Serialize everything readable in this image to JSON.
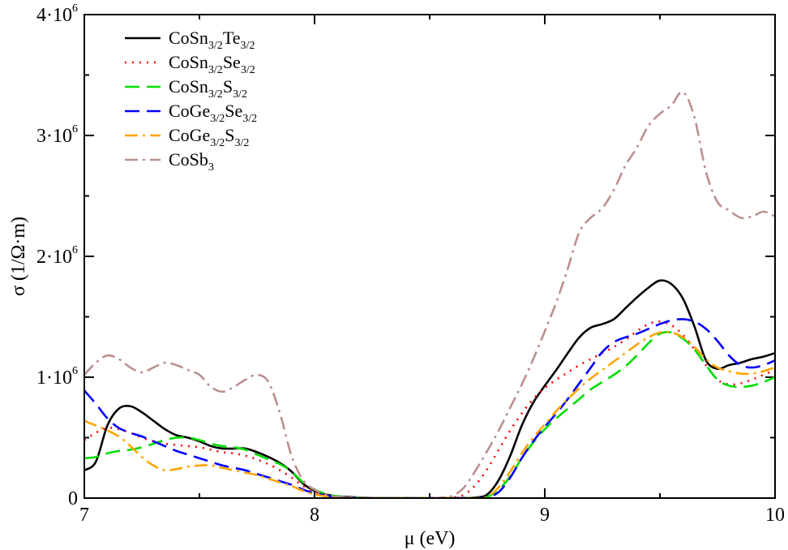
{
  "chart_data": {
    "type": "line",
    "title": "",
    "xlabel": "μ (eV)",
    "ylabel": "σ (1/Ω·m)",
    "xlim": [
      7,
      10
    ],
    "ylim": [
      0,
      4000000
    ],
    "grid": false,
    "legend_position": "top-left",
    "x_ticks": [
      {
        "value": 7,
        "label": "7"
      },
      {
        "value": 8,
        "label": "8"
      },
      {
        "value": 9,
        "label": "9"
      },
      {
        "value": 10,
        "label": "10"
      }
    ],
    "y_ticks": [
      {
        "value": 0,
        "base": "0",
        "exp": ""
      },
      {
        "value": 1000000,
        "base": "1·10",
        "exp": "6"
      },
      {
        "value": 2000000,
        "base": "2·10",
        "exp": "6"
      },
      {
        "value": 3000000,
        "base": "3·10",
        "exp": "6"
      },
      {
        "value": 4000000,
        "base": "4·10",
        "exp": "6"
      }
    ],
    "series": [
      {
        "name": "CoSn3/2Te3/2",
        "label_parts": [
          [
            "CoSn",
            ""
          ],
          [
            "3/2",
            "sub"
          ],
          [
            "Te",
            ""
          ],
          [
            "3/2",
            "sub"
          ]
        ],
        "color": "#000000",
        "dash": "",
        "width": 2.6,
        "x": [
          7.0,
          7.05,
          7.1,
          7.15,
          7.2,
          7.25,
          7.3,
          7.35,
          7.4,
          7.45,
          7.5,
          7.55,
          7.6,
          7.65,
          7.7,
          7.75,
          7.8,
          7.85,
          7.9,
          7.95,
          8.0,
          8.05,
          8.1,
          8.2,
          8.3,
          8.4,
          8.5,
          8.6,
          8.7,
          8.75,
          8.8,
          8.85,
          8.9,
          8.95,
          9.0,
          9.05,
          9.1,
          9.15,
          9.2,
          9.25,
          9.3,
          9.35,
          9.4,
          9.45,
          9.5,
          9.55,
          9.6,
          9.65,
          9.7,
          9.75,
          9.8,
          9.85,
          9.9,
          9.95,
          10.0
        ],
        "y": [
          230000,
          300000,
          600000,
          740000,
          760000,
          710000,
          640000,
          570000,
          520000,
          500000,
          470000,
          430000,
          410000,
          410000,
          410000,
          380000,
          340000,
          290000,
          220000,
          120000,
          60000,
          30000,
          15000,
          5000,
          0,
          0,
          0,
          0,
          5000,
          30000,
          150000,
          350000,
          600000,
          790000,
          930000,
          1060000,
          1200000,
          1330000,
          1410000,
          1440000,
          1480000,
          1570000,
          1660000,
          1740000,
          1800000,
          1770000,
          1650000,
          1420000,
          1140000,
          1070000,
          1100000,
          1120000,
          1150000,
          1170000,
          1200000
        ]
      },
      {
        "name": "CoSn3/2Se3/2",
        "label_parts": [
          [
            "CoSn",
            ""
          ],
          [
            "3/2",
            "sub"
          ],
          [
            "Se",
            ""
          ],
          [
            "3/2",
            "sub"
          ]
        ],
        "color": "#ff0000",
        "dash": "2,7",
        "width": 2.6,
        "x": [
          7.0,
          7.05,
          7.1,
          7.15,
          7.2,
          7.25,
          7.3,
          7.35,
          7.4,
          7.45,
          7.5,
          7.55,
          7.6,
          7.65,
          7.7,
          7.75,
          7.8,
          7.85,
          7.9,
          7.95,
          8.0,
          8.05,
          8.1,
          8.2,
          8.3,
          8.4,
          8.5,
          8.6,
          8.65,
          8.7,
          8.75,
          8.8,
          8.85,
          8.9,
          8.95,
          9.0,
          9.05,
          9.1,
          9.15,
          9.2,
          9.25,
          9.3,
          9.35,
          9.4,
          9.45,
          9.5,
          9.55,
          9.6,
          9.65,
          9.7,
          9.75,
          9.8,
          9.85,
          9.9,
          9.95,
          10.0
        ],
        "y": [
          480000,
          540000,
          580000,
          570000,
          540000,
          500000,
          470000,
          450000,
          440000,
          430000,
          420000,
          400000,
          380000,
          370000,
          350000,
          320000,
          280000,
          230000,
          170000,
          100000,
          50000,
          25000,
          10000,
          3000,
          0,
          0,
          0,
          5000,
          30000,
          110000,
          240000,
          400000,
          560000,
          700000,
          820000,
          910000,
          980000,
          1040000,
          1100000,
          1150000,
          1200000,
          1250000,
          1310000,
          1380000,
          1440000,
          1460000,
          1430000,
          1350000,
          1230000,
          1100000,
          980000,
          940000,
          950000,
          980000,
          1020000,
          1060000
        ]
      },
      {
        "name": "CoSn3/2S3/2",
        "label_parts": [
          [
            "CoSn",
            ""
          ],
          [
            "3/2",
            "sub"
          ],
          [
            "S",
            ""
          ],
          [
            "3/2",
            "sub"
          ]
        ],
        "color": "#00dd00",
        "dash": "18,9",
        "width": 2.6,
        "x": [
          7.0,
          7.05,
          7.1,
          7.15,
          7.2,
          7.25,
          7.3,
          7.35,
          7.4,
          7.45,
          7.5,
          7.55,
          7.6,
          7.65,
          7.7,
          7.75,
          7.8,
          7.85,
          7.9,
          7.95,
          8.0,
          8.05,
          8.1,
          8.2,
          8.3,
          8.4,
          8.5,
          8.6,
          8.7,
          8.75,
          8.8,
          8.85,
          8.9,
          8.95,
          9.0,
          9.05,
          9.1,
          9.15,
          9.2,
          9.25,
          9.3,
          9.35,
          9.4,
          9.45,
          9.5,
          9.55,
          9.6,
          9.65,
          9.7,
          9.75,
          9.8,
          9.85,
          9.9,
          9.95,
          10.0
        ],
        "y": [
          330000,
          340000,
          370000,
          390000,
          400000,
          420000,
          450000,
          480000,
          500000,
          500000,
          480000,
          450000,
          430000,
          420000,
          400000,
          360000,
          320000,
          280000,
          220000,
          130000,
          70000,
          35000,
          15000,
          3000,
          0,
          0,
          0,
          0,
          0,
          10000,
          70000,
          180000,
          330000,
          460000,
          570000,
          660000,
          740000,
          820000,
          900000,
          960000,
          1020000,
          1090000,
          1180000,
          1280000,
          1360000,
          1370000,
          1320000,
          1230000,
          1100000,
          980000,
          930000,
          920000,
          930000,
          960000,
          1000000
        ]
      },
      {
        "name": "CoGe3/2Se3/2",
        "label_parts": [
          [
            "CoGe",
            ""
          ],
          [
            "3/2",
            "sub"
          ],
          [
            "Se",
            ""
          ],
          [
            "3/2",
            "sub"
          ]
        ],
        "color": "#0000ff",
        "dash": "18,9",
        "width": 2.6,
        "x": [
          7.0,
          7.05,
          7.1,
          7.15,
          7.2,
          7.25,
          7.3,
          7.35,
          7.4,
          7.45,
          7.5,
          7.55,
          7.6,
          7.65,
          7.7,
          7.75,
          7.8,
          7.85,
          7.9,
          7.95,
          8.0,
          8.05,
          8.1,
          8.2,
          8.3,
          8.4,
          8.5,
          8.6,
          8.7,
          8.75,
          8.8,
          8.85,
          8.9,
          8.95,
          9.0,
          9.05,
          9.1,
          9.15,
          9.2,
          9.25,
          9.3,
          9.35,
          9.4,
          9.45,
          9.5,
          9.55,
          9.6,
          9.65,
          9.7,
          9.75,
          9.8,
          9.85,
          9.9,
          9.95,
          10.0
        ],
        "y": [
          890000,
          780000,
          660000,
          580000,
          540000,
          510000,
          470000,
          430000,
          390000,
          360000,
          330000,
          300000,
          270000,
          250000,
          230000,
          200000,
          170000,
          140000,
          110000,
          70000,
          40000,
          20000,
          10000,
          2000,
          0,
          0,
          0,
          0,
          0,
          5000,
          50000,
          170000,
          330000,
          470000,
          590000,
          700000,
          820000,
          950000,
          1080000,
          1210000,
          1290000,
          1330000,
          1360000,
          1400000,
          1440000,
          1470000,
          1480000,
          1460000,
          1400000,
          1300000,
          1180000,
          1100000,
          1080000,
          1100000,
          1140000
        ]
      },
      {
        "name": "CoGe3/2S3/2",
        "label_parts": [
          [
            "CoGe",
            ""
          ],
          [
            "3/2",
            "sub"
          ],
          [
            "S",
            ""
          ],
          [
            "3/2",
            "sub"
          ]
        ],
        "color": "#ffa500",
        "dash": "16,6,3,6",
        "width": 2.6,
        "x": [
          7.0,
          7.05,
          7.1,
          7.15,
          7.2,
          7.25,
          7.3,
          7.35,
          7.4,
          7.45,
          7.5,
          7.55,
          7.6,
          7.65,
          7.7,
          7.75,
          7.8,
          7.85,
          7.9,
          7.95,
          8.0,
          8.05,
          8.1,
          8.2,
          8.3,
          8.4,
          8.5,
          8.6,
          8.7,
          8.75,
          8.8,
          8.85,
          8.9,
          8.95,
          9.0,
          9.05,
          9.1,
          9.15,
          9.2,
          9.25,
          9.3,
          9.35,
          9.4,
          9.45,
          9.5,
          9.55,
          9.6,
          9.65,
          9.7,
          9.75,
          9.8,
          9.85,
          9.9,
          9.95,
          10.0
        ],
        "y": [
          640000,
          600000,
          560000,
          510000,
          430000,
          340000,
          270000,
          230000,
          240000,
          260000,
          270000,
          270000,
          250000,
          230000,
          210000,
          190000,
          160000,
          130000,
          100000,
          60000,
          30000,
          15000,
          5000,
          0,
          0,
          0,
          0,
          0,
          0,
          10000,
          90000,
          220000,
          370000,
          500000,
          610000,
          720000,
          820000,
          910000,
          990000,
          1060000,
          1130000,
          1200000,
          1270000,
          1330000,
          1370000,
          1370000,
          1330000,
          1250000,
          1150000,
          1080000,
          1050000,
          1030000,
          1030000,
          1050000,
          1080000
        ]
      },
      {
        "name": "CoSb3",
        "label_parts": [
          [
            "CoSb",
            ""
          ],
          [
            "3",
            "sub"
          ]
        ],
        "color": "#bc8f8f",
        "dash": "16,6,3,6",
        "width": 2.6,
        "x": [
          7.0,
          7.05,
          7.1,
          7.15,
          7.2,
          7.25,
          7.3,
          7.35,
          7.4,
          7.45,
          7.5,
          7.55,
          7.6,
          7.65,
          7.7,
          7.75,
          7.8,
          7.85,
          7.9,
          7.95,
          8.0,
          8.05,
          8.1,
          8.2,
          8.3,
          8.4,
          8.5,
          8.55,
          8.6,
          8.65,
          8.7,
          8.75,
          8.8,
          8.85,
          8.9,
          8.95,
          9.0,
          9.05,
          9.1,
          9.15,
          9.2,
          9.25,
          9.3,
          9.35,
          9.4,
          9.45,
          9.5,
          9.55,
          9.6,
          9.65,
          9.7,
          9.75,
          9.8,
          9.85,
          9.9,
          9.95,
          10.0
        ],
        "y": [
          1020000,
          1120000,
          1180000,
          1150000,
          1080000,
          1040000,
          1080000,
          1120000,
          1100000,
          1060000,
          1020000,
          920000,
          880000,
          920000,
          980000,
          1020000,
          960000,
          700000,
          350000,
          150000,
          70000,
          30000,
          10000,
          2000,
          0,
          0,
          0,
          5000,
          20000,
          90000,
          230000,
          390000,
          560000,
          750000,
          940000,
          1150000,
          1380000,
          1620000,
          1900000,
          2200000,
          2320000,
          2400000,
          2550000,
          2750000,
          2900000,
          3080000,
          3180000,
          3250000,
          3360000,
          3150000,
          2700000,
          2450000,
          2380000,
          2320000,
          2330000,
          2370000,
          2330000
        ]
      }
    ]
  }
}
